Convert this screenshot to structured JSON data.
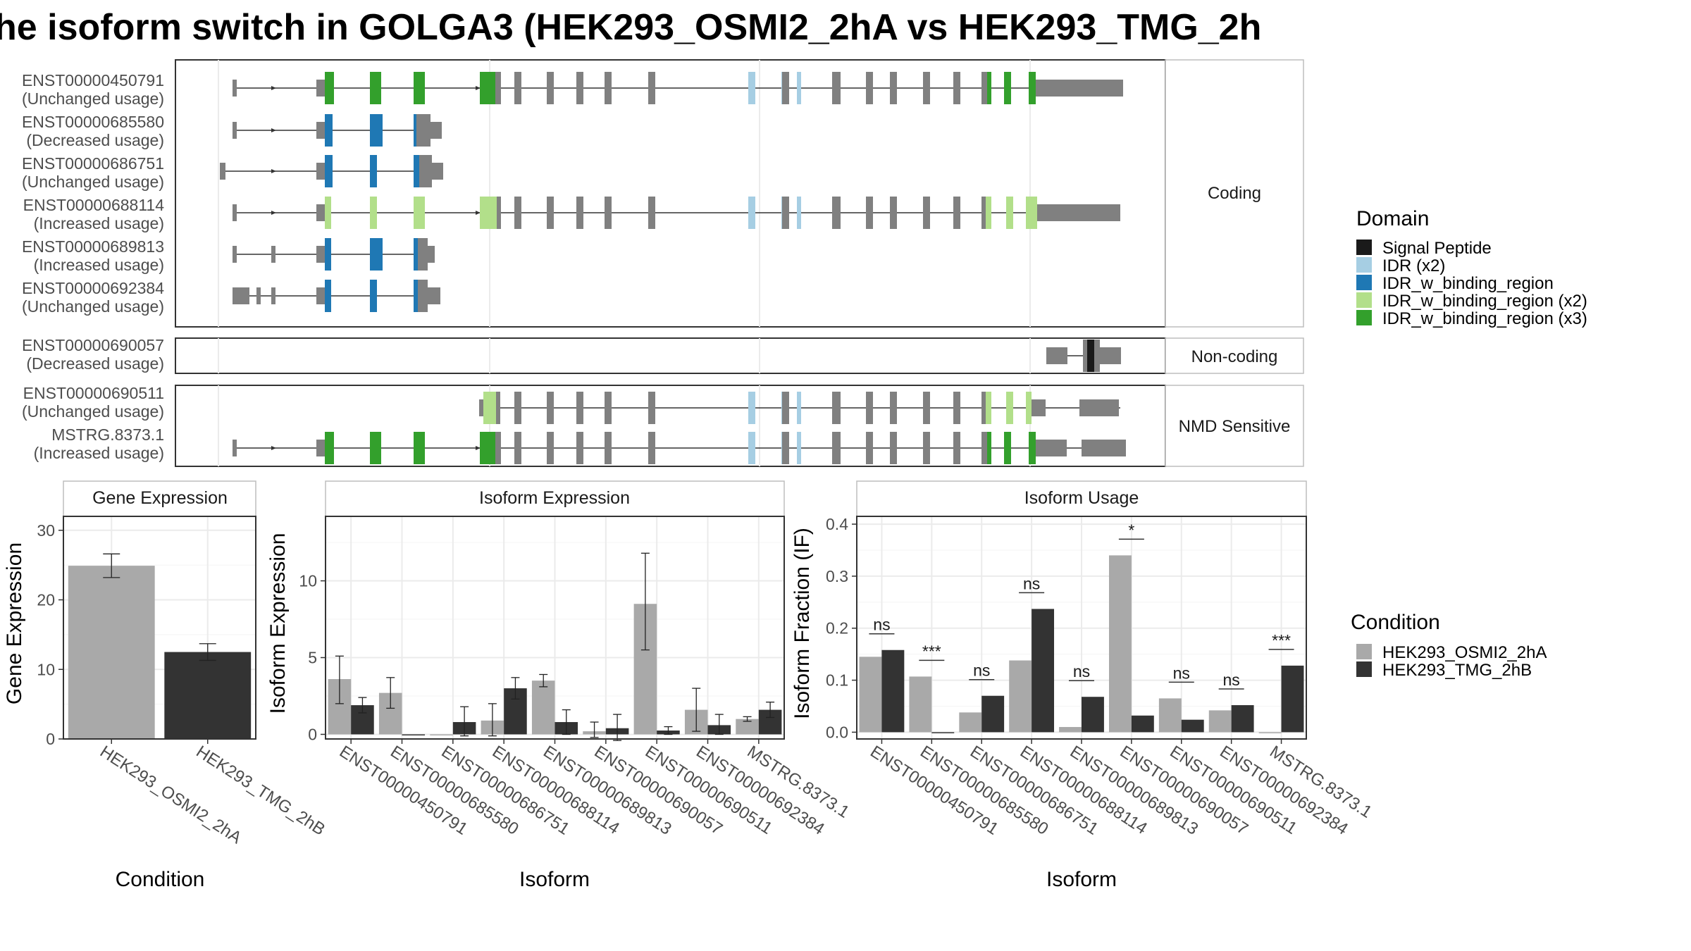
{
  "title": "he isoform switch in GOLGA3 (HEK293_OSMI2_2hA vs HEK293_TMG_2h",
  "colors": {
    "signal_peptide": "#1a1a1a",
    "idr_x2": "#a6cee3",
    "idr_binding": "#1f78b4",
    "idr_binding_x2": "#b2df8a",
    "idr_binding_x3": "#33a02c",
    "exon_gray": "#808080",
    "cond_a": "#a9a9a9",
    "cond_b": "#333333"
  },
  "structure": {
    "facets": [
      {
        "label": "Coding",
        "transcripts": [
          {
            "id": "ENST00000450791",
            "usage": "(Unchanged usage)"
          },
          {
            "id": "ENST00000685580",
            "usage": "(Decreased usage)"
          },
          {
            "id": "ENST00000686751",
            "usage": "(Unchanged usage)"
          },
          {
            "id": "ENST00000688114",
            "usage": "(Increased usage)"
          },
          {
            "id": "ENST00000689813",
            "usage": "(Increased usage)"
          },
          {
            "id": "ENST00000692384",
            "usage": "(Unchanged usage)"
          }
        ]
      },
      {
        "label": "Non-coding",
        "transcripts": [
          {
            "id": "ENST00000690057",
            "usage": "(Decreased usage)"
          }
        ]
      },
      {
        "label": "NMD Sensitive",
        "transcripts": [
          {
            "id": "ENST00000690511",
            "usage": "(Unchanged usage)"
          },
          {
            "id": "MSTRG.8373.1",
            "usage": "(Increased usage)"
          }
        ]
      }
    ],
    "domain_legend": {
      "title": "Domain",
      "items": [
        {
          "label": "Signal Peptide",
          "color": "#1a1a1a"
        },
        {
          "label": "IDR (x2)",
          "color": "#a6cee3"
        },
        {
          "label": "IDR_w_binding_region",
          "color": "#1f78b4"
        },
        {
          "label": "IDR_w_binding_region (x2)",
          "color": "#b2df8a"
        },
        {
          "label": "IDR_w_binding_region (x3)",
          "color": "#33a02c"
        }
      ]
    }
  },
  "condition_legend": {
    "title": "Condition",
    "items": [
      {
        "label": "HEK293_OSMI2_2hA",
        "color": "#a9a9a9"
      },
      {
        "label": "HEK293_TMG_2hB",
        "color": "#333333"
      }
    ]
  },
  "chart_data": [
    {
      "type": "bar",
      "strip": "Gene Expression",
      "xlabel": "Condition",
      "ylabel": "Gene Expression",
      "ylim": [
        0,
        32
      ],
      "yticks": [
        0,
        10,
        20,
        30
      ],
      "categories": [
        "HEK293_OSMI2_2hA",
        "HEK293_TMG_2hB"
      ],
      "values": [
        24.9,
        12.5
      ],
      "errors": [
        [
          23.2,
          26.6
        ],
        [
          11.3,
          13.7
        ]
      ],
      "colors": [
        "#a9a9a9",
        "#333333"
      ]
    },
    {
      "type": "bar",
      "strip": "Isoform Expression",
      "xlabel": "Isoform",
      "ylabel": "Isoform Expression",
      "ylim": [
        -0.3,
        14.2
      ],
      "yticks": [
        0,
        5,
        10
      ],
      "categories": [
        "ENST00000450791",
        "ENST00000685580",
        "ENST00000686751",
        "ENST00000688114",
        "ENST00000689813",
        "ENST00000690057",
        "ENST00000690511",
        "ENST00000692384",
        "MSTRG.8373.1"
      ],
      "series": [
        {
          "name": "HEK293_OSMI2_2hA",
          "values": [
            3.6,
            2.7,
            0.0,
            0.9,
            3.5,
            0.2,
            8.5,
            1.6,
            1.0
          ],
          "errors": [
            [
              2.0,
              5.1
            ],
            [
              1.7,
              3.7
            ],
            null,
            [
              -0.1,
              2.0
            ],
            [
              3.1,
              3.9
            ],
            [
              -0.2,
              0.8
            ],
            [
              5.5,
              11.8
            ],
            [
              0.2,
              3.0
            ],
            [
              0.85,
              1.15
            ]
          ]
        },
        {
          "name": "HEK293_TMG_2hB",
          "values": [
            1.9,
            0.0,
            0.8,
            3.0,
            0.8,
            0.4,
            0.25,
            0.6,
            1.6
          ],
          "errors": [
            [
              1.4,
              2.4
            ],
            null,
            [
              -0.1,
              1.8
            ],
            [
              2.3,
              3.7
            ],
            [
              0.0,
              1.6
            ],
            [
              -0.4,
              1.3
            ],
            [
              0.0,
              0.5
            ],
            [
              0.0,
              1.3
            ],
            [
              1.1,
              2.1
            ]
          ]
        }
      ]
    },
    {
      "type": "bar",
      "strip": "Isoform Usage",
      "xlabel": "Isoform",
      "ylabel": "Isoform Fraction (IF)",
      "ylim": [
        -0.013,
        0.415
      ],
      "yticks": [
        0.0,
        0.1,
        0.2,
        0.3,
        0.4
      ],
      "categories": [
        "ENST00000450791",
        "ENST00000685580",
        "ENST00000686751",
        "ENST00000688114",
        "ENST00000689813",
        "ENST00000690057",
        "ENST00000690511",
        "ENST00000692384",
        "MSTRG.8373.1"
      ],
      "series": [
        {
          "name": "HEK293_OSMI2_2hA",
          "values": [
            0.145,
            0.107,
            0.038,
            0.138,
            0.01,
            0.34,
            0.065,
            0.042,
            0.0
          ]
        },
        {
          "name": "HEK293_TMG_2hB",
          "values": [
            0.158,
            0.0,
            0.07,
            0.237,
            0.068,
            0.032,
            0.024,
            0.052,
            0.128
          ]
        }
      ],
      "annotations": [
        "ns",
        "***",
        "ns",
        "ns",
        "ns",
        "*",
        "ns",
        "ns",
        "***"
      ]
    }
  ]
}
